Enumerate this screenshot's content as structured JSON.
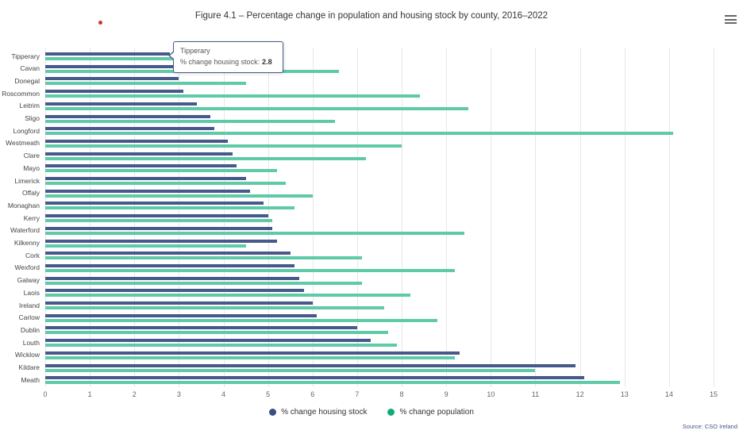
{
  "header": {
    "title": "Figure 4.1 – Percentage change in population and housing stock by county, 2016–2022"
  },
  "tooltip": {
    "county": "Tipperary",
    "label": "% change housing stock:",
    "value": "2.8"
  },
  "legend": [
    {
      "label": "% change housing stock",
      "color": "#3a5080"
    },
    {
      "label": "% change population",
      "color": "#14a97c"
    }
  ],
  "source": "Source: CSO Ireland",
  "colors": {
    "housing_bar": "#47598b",
    "population_bar": "#5fcaa8",
    "gridline": "#e7e7e7",
    "red_dot": "#d0342a"
  },
  "chart_data": {
    "type": "bar",
    "orientation": "horizontal",
    "title": "Figure 4.1 – Percentage change in population and housing stock by county, 2016–2022",
    "categories": [
      "Tipperary",
      "Cavan",
      "Donegal",
      "Roscommon",
      "Leitrim",
      "Sligo",
      "Longford",
      "Westmeath",
      "Clare",
      "Mayo",
      "Limerick",
      "Offaly",
      "Monaghan",
      "Kerry",
      "Waterford",
      "Kilkenny",
      "Cork",
      "Wexford",
      "Galway",
      "Laois",
      "Ireland",
      "Carlow",
      "Dublin",
      "Louth",
      "Wicklow",
      "Kildare",
      "Meath"
    ],
    "series": [
      {
        "name": "% change housing stock",
        "color": "#47598b",
        "values": [
          2.8,
          2.9,
          3.0,
          3.1,
          3.4,
          3.7,
          3.8,
          4.1,
          4.2,
          4.3,
          4.5,
          4.6,
          4.9,
          5.0,
          5.1,
          5.2,
          5.5,
          5.6,
          5.7,
          5.8,
          6.0,
          6.1,
          7.0,
          7.3,
          9.3,
          11.9,
          12.1
        ]
      },
      {
        "name": "% change population",
        "color": "#5fcaa8",
        "values": [
          5.1,
          6.6,
          4.5,
          8.4,
          9.5,
          6.5,
          14.1,
          8.0,
          7.2,
          5.2,
          5.4,
          6.0,
          5.6,
          5.1,
          9.4,
          4.5,
          7.1,
          9.2,
          7.1,
          8.2,
          7.6,
          8.8,
          7.7,
          7.9,
          9.2,
          11.0,
          12.9
        ]
      }
    ],
    "xlabel": "",
    "ylabel": "",
    "xlim": [
      0,
      15
    ],
    "x_ticks": [
      0,
      1,
      2,
      3,
      4,
      5,
      6,
      7,
      8,
      9,
      10,
      11,
      12,
      13,
      14,
      15
    ],
    "grid": true,
    "legend_position": "bottom",
    "tooltip_shown": {
      "category": "Tipperary",
      "series": "% change housing stock",
      "value": 2.8
    }
  }
}
